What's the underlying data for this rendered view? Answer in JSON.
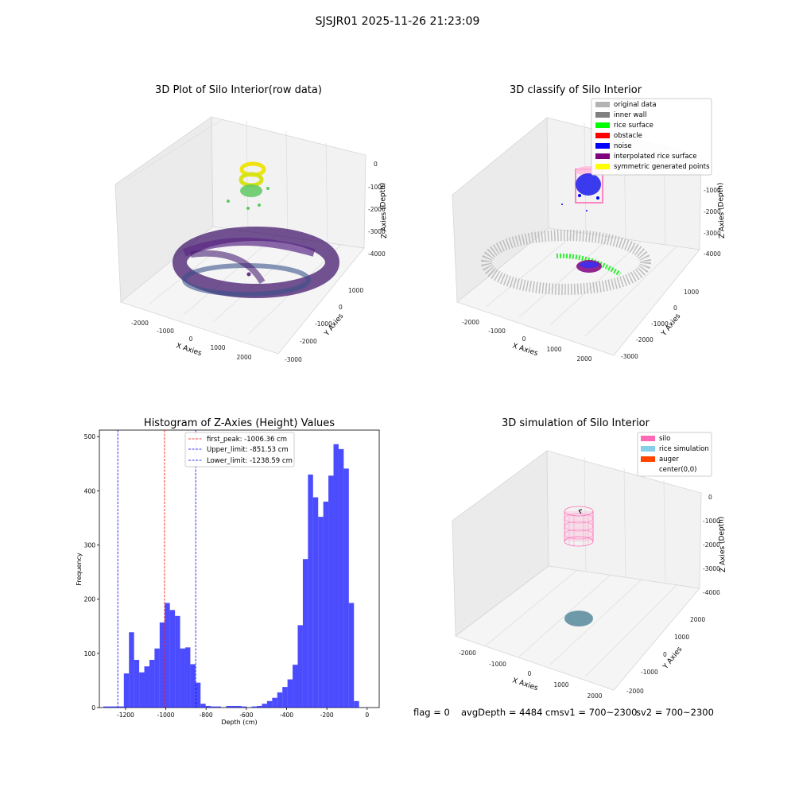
{
  "suptitle": "SJSJR01 2025-11-26 21:23:09",
  "panels": {
    "raw": {
      "title": "3D Plot of Silo Interior(row data)",
      "xlabel": "X Axies",
      "ylabel": "Y Axies",
      "zlabel": "Z Axies (Depth)",
      "xticks": [
        "-2000",
        "-1000",
        "0",
        "1000",
        "2000"
      ],
      "yticks": [
        "1000",
        "0",
        "-1000",
        "-2000",
        "-3000"
      ],
      "zticks": [
        "0",
        "-1000",
        "-2000",
        "-3000",
        "-4000"
      ]
    },
    "classify": {
      "title": "3D classify of Silo Interior",
      "xlabel": "X Axies",
      "ylabel": "Y Axies",
      "zlabel": "Z Axies (Depth)",
      "xticks": [
        "-2000",
        "-1000",
        "0",
        "1000",
        "2000"
      ],
      "yticks": [
        "1000",
        "0",
        "-1000",
        "-2000",
        "-3000"
      ],
      "zticks": [
        "-1000",
        "-2000",
        "-3000",
        "-4000"
      ],
      "legend": [
        {
          "label": "original data",
          "color": "#b3b3b3"
        },
        {
          "label": "inner wall",
          "color": "#808080"
        },
        {
          "label": "rice surface",
          "color": "#00ff00"
        },
        {
          "label": "obstacle",
          "color": "#ff0000"
        },
        {
          "label": "noise",
          "color": "#0000ff"
        },
        {
          "label": "interpolated rice surface",
          "color": "#800080"
        },
        {
          "label": "symmetric generated points",
          "color": "#ffff00"
        }
      ]
    },
    "simulation": {
      "title": "3D simulation of Silo Interior",
      "xlabel": "X Axies",
      "ylabel": "Y Axies",
      "zlabel": "Z Axies (Depth)",
      "xticks": [
        "-2000",
        "-1000",
        "0",
        "1000",
        "2000"
      ],
      "yticks": [
        "2000",
        "1000",
        "0",
        "-1000",
        "-2000"
      ],
      "zticks": [
        "0",
        "-1000",
        "-2000",
        "-3000",
        "-4000"
      ],
      "legend": [
        {
          "label": "silo",
          "color": "#ff69b4"
        },
        {
          "label": "rice simulation",
          "color": "#87ceeb"
        },
        {
          "label": "auger",
          "color": "#ff4500"
        },
        {
          "label": "center(0,0)",
          "color": ""
        }
      ]
    }
  },
  "chart_data": {
    "type": "bar",
    "title": "Histogram of Z-Axies (Height) Values",
    "xlabel": "Depth (cm)",
    "ylabel": "Frequency",
    "xlim": [
      -1330,
      60
    ],
    "ylim": [
      0,
      512
    ],
    "xticks": [
      -1200,
      -1000,
      -800,
      -600,
      -400,
      -200,
      0
    ],
    "yticks": [
      0,
      100,
      200,
      300,
      400,
      500
    ],
    "bar_color": "#0000ff",
    "bin_edges_start": -1310,
    "bin_width": 25.4,
    "values": [
      2,
      2,
      2,
      2,
      63,
      139,
      88,
      65,
      76,
      88,
      109,
      157,
      193,
      180,
      169,
      109,
      111,
      80,
      46,
      7,
      3,
      2,
      2,
      0,
      3,
      3,
      3,
      2,
      0,
      2,
      3,
      7,
      12,
      18,
      28,
      38,
      52,
      79,
      152,
      274,
      430,
      388,
      352,
      380,
      428,
      486,
      477,
      441,
      193,
      12
    ],
    "vlines": [
      {
        "x": -1006.36,
        "label": "first_peak: -1006.36 cm",
        "color": "#ff0000"
      },
      {
        "x": -851.53,
        "label": "Upper_limit: -851.53 cm",
        "color": "#0000ff"
      },
      {
        "x": -1238.59,
        "label": "Lower_limit: -1238.59 cm",
        "color": "#0000ff"
      }
    ],
    "legend_position": "top-center"
  },
  "status": {
    "flag": "flag = 0",
    "avg": "avgDepth = 4484 cmsv1 = 700~2300",
    "sv2": "sv2 = 700~2300"
  }
}
